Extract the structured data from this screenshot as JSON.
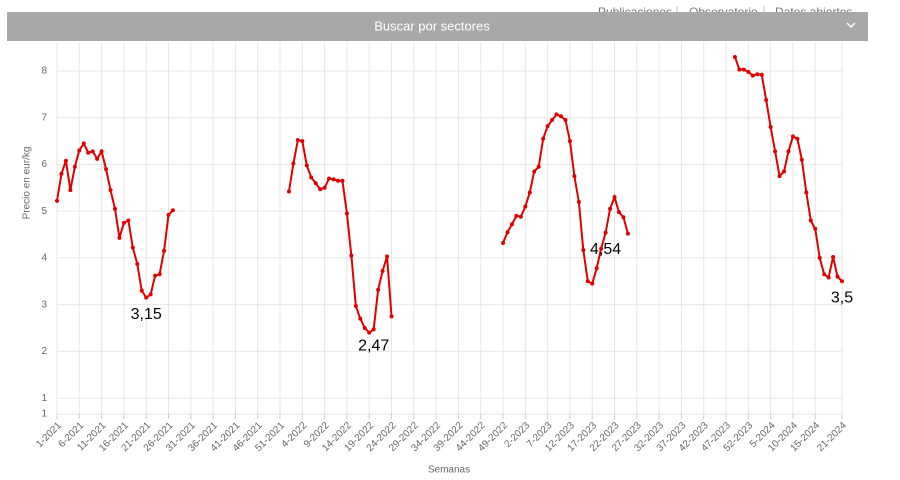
{
  "nav": [
    "Publicaciones",
    "Observatorio",
    "Datos abiertos"
  ],
  "search_bar": "Buscar por sectores",
  "chart_data": {
    "type": "line",
    "ylabel": "Precio en eur/kg",
    "xlabel": "Semanas",
    "color": "#e10000",
    "grid": true,
    "ylim": [
      0.66,
      8.62
    ],
    "yticks": [
      {
        "value": 0.66,
        "label": "1"
      },
      1,
      2,
      3,
      4,
      5,
      6,
      7,
      8
    ],
    "categories": [
      "1-2021",
      null,
      null,
      null,
      null,
      "6-2021",
      null,
      null,
      null,
      null,
      "11-2021",
      null,
      null,
      null,
      null,
      "16-2021",
      null,
      null,
      null,
      null,
      "21-2021",
      null,
      null,
      null,
      null,
      "26-2021",
      null,
      null,
      null,
      null,
      "31-2021",
      null,
      null,
      null,
      null,
      "36-2021",
      null,
      null,
      null,
      null,
      "41-2021",
      null,
      null,
      null,
      null,
      "46-2021",
      null,
      null,
      null,
      null,
      "51-2021",
      null,
      null,
      null,
      null,
      "4-2022",
      null,
      null,
      null,
      null,
      "9-2022",
      null,
      null,
      null,
      null,
      "14-2022",
      null,
      null,
      null,
      null,
      "19-2022",
      null,
      null,
      null,
      null,
      "24-2022",
      null,
      null,
      null,
      null,
      "29-2022",
      null,
      null,
      null,
      null,
      "34-2022",
      null,
      null,
      null,
      null,
      "39-2022",
      null,
      null,
      null,
      null,
      "44-2022",
      null,
      null,
      null,
      null,
      "49-2022",
      null,
      null,
      null,
      null,
      "2-2023",
      null,
      null,
      null,
      null,
      "7-2023",
      null,
      null,
      null,
      null,
      "12-2023",
      null,
      null,
      null,
      null,
      "17-2023",
      null,
      null,
      null,
      null,
      "22-2023",
      null,
      null,
      null,
      null,
      "27-2023",
      null,
      null,
      null,
      null,
      "32-2023",
      null,
      null,
      null,
      null,
      "37-2023",
      null,
      null,
      null,
      null,
      "42-2023",
      null,
      null,
      null,
      null,
      "47-2023",
      null,
      null,
      null,
      null,
      "52-2023",
      null,
      null,
      null,
      null,
      "5-2024",
      null,
      null,
      null,
      null,
      "10-2024",
      null,
      null,
      null,
      null,
      "15-2024",
      null,
      null,
      null,
      null,
      null,
      "21-2024"
    ],
    "values": [
      5.22,
      5.8,
      6.08,
      5.45,
      5.95,
      6.3,
      6.45,
      6.25,
      6.28,
      6.12,
      6.28,
      5.9,
      5.45,
      5.05,
      4.43,
      4.75,
      4.8,
      4.22,
      3.87,
      3.3,
      3.15,
      3.22,
      3.62,
      3.65,
      4.15,
      4.92,
      5.02,
      null,
      null,
      null,
      null,
      null,
      null,
      null,
      null,
      null,
      null,
      null,
      null,
      null,
      null,
      null,
      null,
      null,
      null,
      null,
      null,
      null,
      null,
      null,
      null,
      null,
      5.42,
      6.02,
      6.52,
      6.5,
      5.98,
      5.72,
      5.6,
      5.47,
      5.5,
      5.7,
      5.68,
      5.65,
      5.65,
      4.95,
      4.05,
      2.97,
      2.7,
      2.5,
      2.4,
      2.47,
      3.32,
      3.72,
      4.03,
      2.75,
      null,
      null,
      null,
      null,
      null,
      null,
      null,
      null,
      null,
      null,
      null,
      null,
      null,
      null,
      null,
      null,
      null,
      null,
      null,
      null,
      null,
      null,
      null,
      null,
      4.32,
      4.55,
      4.72,
      4.9,
      4.88,
      5.1,
      5.4,
      5.85,
      5.95,
      6.55,
      6.82,
      6.95,
      7.07,
      7.03,
      6.95,
      6.5,
      5.75,
      5.2,
      4.17,
      3.5,
      3.45,
      3.78,
      4.2,
      4.54,
      5.05,
      5.3,
      4.98,
      4.87,
      4.52,
      null,
      null,
      null,
      null,
      null,
      null,
      null,
      null,
      null,
      null,
      null,
      null,
      null,
      null,
      null,
      null,
      null,
      null,
      null,
      null,
      null,
      null,
      null,
      8.3,
      8.03,
      8.03,
      7.98,
      7.9,
      7.93,
      7.92,
      7.38,
      6.8,
      6.28,
      5.75,
      5.85,
      6.28,
      6.6,
      6.55,
      6.1,
      5.4,
      4.8,
      4.62,
      4.0,
      3.65,
      3.58,
      4.02,
      3.6,
      3.5
    ],
    "value_labels": [
      null,
      null,
      null,
      null,
      null,
      null,
      null,
      null,
      null,
      null,
      null,
      null,
      null,
      null,
      null,
      null,
      null,
      null,
      null,
      null,
      "3,15",
      null,
      null,
      null,
      null,
      null,
      null,
      null,
      null,
      null,
      null,
      null,
      null,
      null,
      null,
      null,
      null,
      null,
      null,
      null,
      null,
      null,
      null,
      null,
      null,
      null,
      null,
      null,
      null,
      null,
      null,
      null,
      null,
      null,
      null,
      null,
      null,
      null,
      null,
      null,
      null,
      null,
      null,
      null,
      null,
      null,
      null,
      null,
      null,
      null,
      null,
      "2,47",
      null,
      null,
      null,
      null,
      null,
      null,
      null,
      null,
      null,
      null,
      null,
      null,
      null,
      null,
      null,
      null,
      null,
      null,
      null,
      null,
      null,
      null,
      null,
      null,
      null,
      null,
      null,
      null,
      null,
      null,
      null,
      null,
      null,
      null,
      null,
      null,
      null,
      null,
      null,
      null,
      null,
      null,
      null,
      null,
      null,
      null,
      null,
      null,
      null,
      null,
      null,
      "4,54",
      null,
      null,
      null,
      null,
      null,
      null,
      null,
      null,
      null,
      null,
      null,
      null,
      null,
      null,
      null,
      null,
      null,
      null,
      null,
      null,
      null,
      null,
      null,
      null,
      null,
      null,
      null,
      null,
      null,
      null,
      null,
      null,
      null,
      null,
      null,
      null,
      null,
      null,
      null,
      null,
      null,
      null,
      null,
      null,
      null,
      null,
      null,
      null,
      null,
      null,
      null,
      null,
      "3,5"
    ]
  }
}
